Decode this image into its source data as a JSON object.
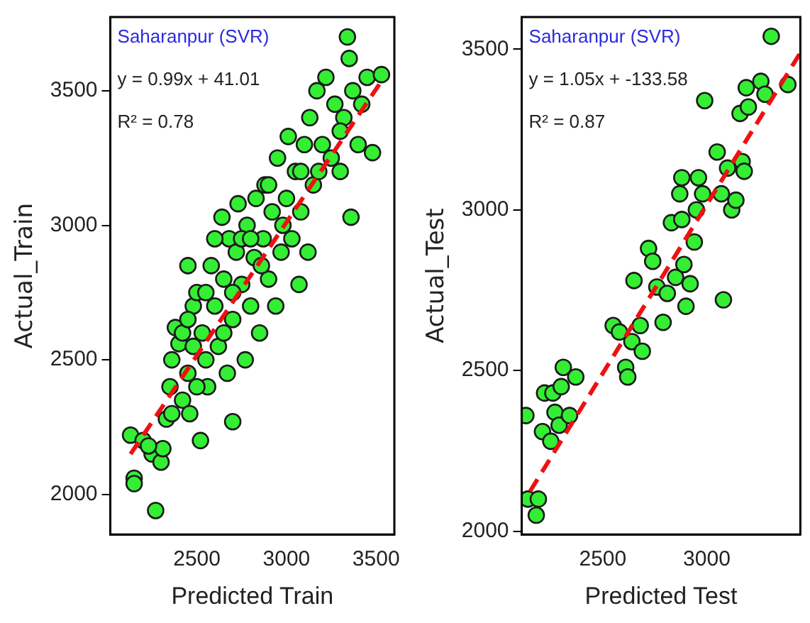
{
  "chart_data": [
    {
      "type": "scatter",
      "xlabel": "Predicted Train",
      "ylabel": "Actual_Train",
      "annotations": [
        "Saharanpur (SVR)",
        "y = 0.99x + 41.01",
        "R² = 0.78"
      ],
      "xlim": [
        2017,
        3602
      ],
      "ylim": [
        1851,
        3774
      ],
      "xticks": [
        2500,
        3000,
        3500
      ],
      "yticks": [
        2000,
        2500,
        3000,
        3500
      ],
      "grid": false,
      "legend": false,
      "series": [
        {
          "type": "scatter",
          "color": "#33ee33",
          "marker": "circle",
          "x": [
            2130,
            2150,
            2150,
            2270,
            2200,
            2250,
            2300,
            2310,
            2330,
            2350,
            2360,
            2380,
            2400,
            2420,
            2450,
            2460,
            2450,
            2480,
            2500,
            2520,
            2530,
            2550,
            2560,
            2580,
            2600,
            2620,
            2640,
            2650,
            2670,
            2680,
            2700,
            2700,
            2720,
            2730,
            2750,
            2770,
            2780,
            2800,
            2820,
            2830,
            2850,
            2870,
            2880,
            2900,
            2920,
            2940,
            2950,
            2970,
            3000,
            3010,
            3030,
            3050,
            3070,
            3080,
            3100,
            3120,
            3130,
            3150,
            3170,
            3200,
            3220,
            3250,
            3270,
            3300,
            3320,
            3340,
            3350,
            3360,
            3370,
            3400,
            3420,
            3450,
            3480,
            3530,
            3300,
            2600,
            2550,
            2480,
            2420,
            2700,
            2860,
            2650,
            2750,
            2980,
            3080,
            2360,
            2500,
            2230,
            2900,
            2800,
            2450,
            3180
          ],
          "values": [
            2220,
            2060,
            2040,
            1940,
            2200,
            2150,
            2120,
            2170,
            2280,
            2400,
            2500,
            2620,
            2560,
            2350,
            2450,
            2300,
            2850,
            2700,
            2750,
            2200,
            2600,
            2500,
            2400,
            2850,
            2700,
            2550,
            3030,
            2800,
            2450,
            2950,
            2650,
            2270,
            2900,
            3080,
            2780,
            2500,
            3000,
            2700,
            2880,
            3100,
            2600,
            2950,
            3150,
            2800,
            3050,
            2700,
            3250,
            2900,
            3100,
            3330,
            2950,
            3200,
            2780,
            3050,
            3300,
            2900,
            3400,
            3150,
            3500,
            3300,
            3550,
            3250,
            3450,
            3200,
            3400,
            3700,
            3620,
            3030,
            3500,
            3300,
            3450,
            3550,
            3270,
            3560,
            3350,
            2950,
            2750,
            2550,
            2600,
            2750,
            2850,
            2600,
            2950,
            3000,
            3200,
            2300,
            2400,
            2180,
            3150,
            2950,
            2650,
            3200
          ]
        },
        {
          "type": "line",
          "color": "#ee1111",
          "marker": "none",
          "line_style": "dashed",
          "x": [
            2130,
            3520
          ],
          "values": [
            2150,
            3526
          ]
        }
      ]
    },
    {
      "type": "scatter",
      "xlabel": "Predicted Test",
      "ylabel": "Actual_Test",
      "annotations": [
        "Saharanpur (SVR)",
        "y = 1.05x + -133.58",
        "R² = 0.87"
      ],
      "xlim": [
        2110,
        3450
      ],
      "ylim": [
        1990,
        3600
      ],
      "xticks": [
        2500,
        3000
      ],
      "yticks": [
        2000,
        2500,
        3000,
        3500
      ],
      "grid": false,
      "legend": false,
      "series": [
        {
          "type": "scatter",
          "color": "#33ee33",
          "marker": "circle",
          "x": [
            2130,
            2140,
            2180,
            2190,
            2210,
            2220,
            2250,
            2260,
            2270,
            2290,
            2300,
            2310,
            2340,
            2370,
            2550,
            2580,
            2610,
            2620,
            2640,
            2650,
            2690,
            2720,
            2740,
            2760,
            2790,
            2810,
            2830,
            2850,
            2870,
            2880,
            2890,
            2900,
            2920,
            2940,
            2950,
            2960,
            2980,
            3050,
            3070,
            3080,
            3100,
            3120,
            3140,
            3160,
            3170,
            3180,
            3190,
            3200,
            3260,
            3280,
            3310,
            3390,
            2990,
            2880,
            2680
          ],
          "values": [
            2360,
            2100,
            2050,
            2100,
            2310,
            2430,
            2280,
            2430,
            2370,
            2330,
            2450,
            2510,
            2360,
            2480,
            2640,
            2620,
            2510,
            2480,
            2590,
            2780,
            2560,
            2880,
            2840,
            2760,
            2650,
            2740,
            2960,
            2790,
            3050,
            2970,
            2830,
            2700,
            2770,
            2900,
            3000,
            3100,
            3050,
            3180,
            3050,
            2720,
            3130,
            3000,
            3030,
            3300,
            3150,
            3120,
            3380,
            3320,
            3400,
            3360,
            3540,
            3390,
            3340,
            3100,
            2640
          ]
        },
        {
          "type": "line",
          "color": "#ee1111",
          "marker": "none",
          "line_style": "dashed",
          "x": [
            2150,
            3450
          ],
          "values": [
            2124,
            3489
          ]
        }
      ]
    }
  ]
}
